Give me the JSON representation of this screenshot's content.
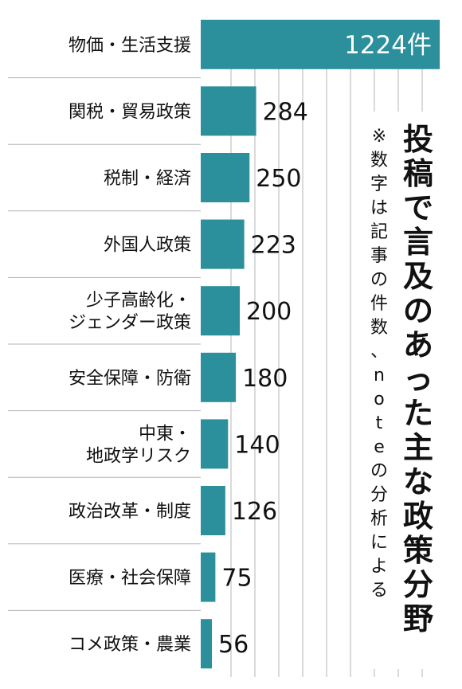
{
  "chart_data": {
    "type": "bar",
    "orientation": "horizontal",
    "title": "投稿で言及のあった主な政策分野",
    "note": "※数字は記事の件数、noteの分析による",
    "categories": [
      [
        "物価・生活支援"
      ],
      [
        "関税・貿易政策"
      ],
      [
        "税制・経済"
      ],
      [
        "外国人政策"
      ],
      [
        "少子高齢化・",
        "ジェンダー政策"
      ],
      [
        "安全保障・防衛"
      ],
      [
        "中東・",
        "地政学リスク"
      ],
      [
        "政治改革・制度"
      ],
      [
        "医療・社会保障"
      ],
      [
        "コメ政策・農業"
      ]
    ],
    "values": [
      1224,
      284,
      250,
      223,
      200,
      180,
      140,
      126,
      75,
      56
    ],
    "value_labels": [
      "1224件",
      "284",
      "250",
      "223",
      "200",
      "180",
      "140",
      "126",
      "75",
      "56"
    ],
    "xlim": [
      0,
      1224
    ],
    "grid": true
  },
  "colors": {
    "bar": "#2b8f9c",
    "grid": "#b5b5b5",
    "text": "#111111"
  }
}
